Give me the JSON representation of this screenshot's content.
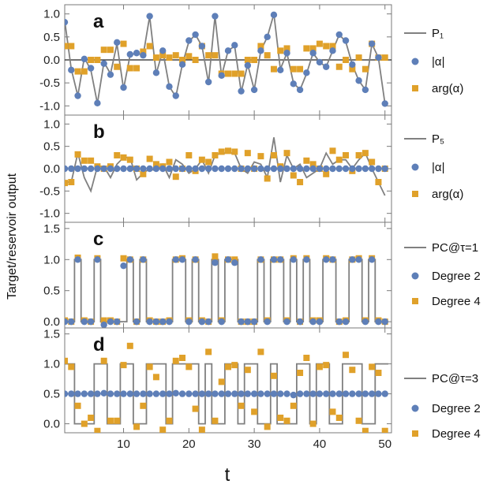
{
  "colors": {
    "target": "#808080",
    "degree2": "#5e7fb8",
    "degree4": "#e0a12a"
  },
  "figure": {
    "xlabel": "t",
    "ylabel": "Target/reservoir output"
  },
  "chart_data": [
    {
      "panel": "a",
      "type": "line+scatter",
      "xlim": [
        1,
        51
      ],
      "ylim": [
        -1.2,
        1.2
      ],
      "yticks": [
        "1.0",
        "0.5",
        "0.0",
        "-0.5",
        "-1.0"
      ],
      "ytick_values": [
        1.0,
        0.5,
        0.0,
        -0.5,
        -1.0
      ],
      "xticks": [
        10,
        20,
        30,
        40,
        50
      ],
      "zero_line": true,
      "legend": [
        "P₁",
        "|α|",
        "arg(α)"
      ],
      "x": [
        1,
        2,
        3,
        4,
        5,
        6,
        7,
        8,
        9,
        10,
        11,
        12,
        13,
        14,
        15,
        16,
        17,
        18,
        19,
        20,
        21,
        22,
        23,
        24,
        25,
        26,
        27,
        28,
        29,
        30,
        31,
        32,
        33,
        34,
        35,
        36,
        37,
        38,
        39,
        40,
        41,
        42,
        43,
        44,
        45,
        46,
        47,
        48,
        49,
        50
      ],
      "target": [
        0.85,
        -0.2,
        -0.78,
        0.05,
        -0.22,
        -0.95,
        -0.05,
        -0.3,
        0.35,
        -0.63,
        0.1,
        0.15,
        0.1,
        0.95,
        -0.3,
        0.2,
        -0.58,
        -0.8,
        -0.1,
        0.4,
        0.55,
        0.3,
        -0.5,
        0.95,
        -0.35,
        0.2,
        0.3,
        -0.7,
        -0.1,
        -0.65,
        0.2,
        0.5,
        1.0,
        -0.2,
        0.15,
        -0.5,
        -0.65,
        -0.3,
        0.15,
        -0.05,
        -0.15,
        0.2,
        0.55,
        0.4,
        -0.1,
        -0.45,
        -0.65,
        0.35,
        0.05,
        -0.95
      ],
      "series": [
        {
          "name": "|α|",
          "values": [
            0.82,
            -0.22,
            -0.78,
            0.02,
            -0.18,
            -0.94,
            -0.08,
            -0.32,
            0.38,
            -0.6,
            0.12,
            0.15,
            0.1,
            0.95,
            -0.28,
            0.2,
            -0.58,
            -0.78,
            -0.1,
            0.42,
            0.55,
            0.3,
            -0.48,
            0.95,
            -0.34,
            0.2,
            0.32,
            -0.68,
            -0.12,
            -0.65,
            0.2,
            0.5,
            0.98,
            -0.22,
            0.15,
            -0.52,
            -0.65,
            -0.28,
            0.15,
            -0.05,
            -0.15,
            0.2,
            0.55,
            0.42,
            -0.1,
            -0.45,
            -0.65,
            0.35,
            0.05,
            -0.95
          ]
        },
        {
          "name": "arg(α)",
          "values": [
            0.3,
            0.3,
            -0.25,
            -0.25,
            0.0,
            0.0,
            0.22,
            0.22,
            -0.15,
            0.35,
            -0.18,
            -0.18,
            0.18,
            0.3,
            0.05,
            0.1,
            0.05,
            0.1,
            0.0,
            0.08,
            0.0,
            0.3,
            0.1,
            0.1,
            -0.3,
            -0.3,
            -0.3,
            -0.3,
            0.0,
            0.0,
            0.3,
            0.1,
            -0.2,
            0.2,
            0.25,
            -0.2,
            -0.2,
            0.25,
            0.25,
            0.35,
            0.3,
            0.3,
            -0.15,
            0.0,
            -0.2,
            0.05,
            -0.2,
            0.35,
            0.05,
            0.05
          ]
        }
      ]
    },
    {
      "panel": "b",
      "type": "line+scatter",
      "xlim": [
        1,
        51
      ],
      "ylim": [
        -1.2,
        1.2
      ],
      "yticks": [
        "1.0",
        "0.5",
        "0.0",
        "-0.5",
        "-1.0"
      ],
      "ytick_values": [
        1.0,
        0.5,
        0.0,
        -0.5,
        -1.0
      ],
      "xticks": [
        10,
        20,
        30,
        40,
        50
      ],
      "legend": [
        "P₅",
        "|α|",
        "arg(α)"
      ],
      "x": [
        1,
        2,
        3,
        4,
        5,
        6,
        7,
        8,
        9,
        10,
        11,
        12,
        13,
        14,
        15,
        16,
        17,
        18,
        19,
        20,
        21,
        22,
        23,
        24,
        25,
        26,
        27,
        28,
        29,
        30,
        31,
        32,
        33,
        34,
        35,
        36,
        37,
        38,
        39,
        40,
        41,
        42,
        43,
        44,
        45,
        46,
        47,
        48,
        49,
        50
      ],
      "target": [
        -0.3,
        -0.3,
        0.35,
        -0.2,
        -0.5,
        0.05,
        0.05,
        -0.2,
        0.1,
        0.25,
        0.25,
        -0.25,
        -0.1,
        0.0,
        -0.05,
        0.1,
        -0.2,
        0.2,
        0.1,
        -0.1,
        0.0,
        0.2,
        -0.1,
        0.3,
        0.35,
        0.35,
        0.35,
        0.0,
        -0.1,
        0.15,
        0.1,
        -0.2,
        0.7,
        -0.3,
        0.3,
        0.0,
        0.1,
        -0.2,
        -0.1,
        0.0,
        0.35,
        0.1,
        0.2,
        0.2,
        0.0,
        0.2,
        0.35,
        0.0,
        -0.3,
        -0.6
      ],
      "series": [
        {
          "name": "|α|",
          "values": [
            0,
            0,
            0,
            0,
            0,
            0,
            0,
            0,
            0,
            0,
            0,
            0,
            0,
            0,
            0,
            0,
            0,
            0,
            0,
            0,
            0,
            0,
            0,
            0,
            0,
            0,
            0,
            0,
            0,
            0,
            0,
            0,
            0,
            0,
            0,
            0,
            0,
            0,
            0,
            0,
            0,
            0,
            0,
            0,
            0,
            0,
            0,
            0,
            0,
            0
          ]
        },
        {
          "name": "arg(α)",
          "values": [
            -0.32,
            -0.3,
            0.32,
            0.18,
            0.18,
            0.05,
            0.0,
            0.05,
            0.3,
            0.25,
            0.2,
            0.0,
            -0.12,
            0.22,
            0.1,
            0.05,
            0.15,
            -0.18,
            0.0,
            0.3,
            -0.05,
            0.2,
            0.15,
            0.3,
            0.38,
            0.4,
            0.38,
            0.0,
            0.35,
            0.0,
            0.28,
            -0.22,
            0.3,
            0.05,
            0.35,
            -0.15,
            -0.3,
            0.18,
            0.1,
            0.0,
            -0.12,
            0.4,
            0.2,
            0.3,
            -0.05,
            0.3,
            0.35,
            0.15,
            -0.3,
            0.0
          ]
        }
      ]
    },
    {
      "panel": "c",
      "type": "step+scatter",
      "xlim": [
        1,
        51
      ],
      "ylim": [
        -0.1,
        1.6
      ],
      "yticks": [
        "1.5",
        "1.0",
        "0.5",
        "0.0"
      ],
      "ytick_values": [
        1.5,
        1.0,
        0.5,
        0.0
      ],
      "xticks": [
        10,
        20,
        30,
        40,
        50
      ],
      "legend": [
        "PC@τ=1",
        "Degree 2",
        "Degree 4"
      ],
      "x": [
        1,
        2,
        3,
        4,
        5,
        6,
        7,
        8,
        9,
        10,
        11,
        12,
        13,
        14,
        15,
        16,
        17,
        18,
        19,
        20,
        21,
        22,
        23,
        24,
        25,
        26,
        27,
        28,
        29,
        30,
        31,
        32,
        33,
        34,
        35,
        36,
        37,
        38,
        39,
        40,
        41,
        42,
        43,
        44,
        45,
        46,
        47,
        48,
        49,
        50
      ],
      "target": [
        0,
        0,
        1,
        0,
        0,
        1,
        0,
        0,
        0,
        0,
        1,
        0,
        1,
        0,
        0,
        0,
        0,
        1,
        1,
        0,
        1,
        0,
        0,
        1,
        0,
        1,
        1,
        0,
        0,
        0,
        1,
        0,
        1,
        1,
        0,
        1,
        0,
        1,
        0,
        0,
        1,
        1,
        0,
        0,
        1,
        1,
        0,
        1,
        0,
        0
      ],
      "series": [
        {
          "name": "Degree 2",
          "values": [
            0.0,
            0.0,
            1.0,
            0.0,
            0.0,
            1.0,
            -0.05,
            0.0,
            0.0,
            0.9,
            1.0,
            0.0,
            1.0,
            0.0,
            0.0,
            0.0,
            0.0,
            1.0,
            1.0,
            0.0,
            1.0,
            0.0,
            0.0,
            0.95,
            0.0,
            1.0,
            0.95,
            0.0,
            0.0,
            0.0,
            1.0,
            0.0,
            1.0,
            1.0,
            0.0,
            1.0,
            0.0,
            1.0,
            0.0,
            0.0,
            1.0,
            1.0,
            0.0,
            0.0,
            1.0,
            1.0,
            0.0,
            1.0,
            0.0,
            0.0
          ]
        },
        {
          "name": "Degree 4",
          "values": [
            0.02,
            0.0,
            1.03,
            0.02,
            0.0,
            1.02,
            0.02,
            0.02,
            0.0,
            1.02,
            1.0,
            0.0,
            1.0,
            0.02,
            0.0,
            0.0,
            0.02,
            1.0,
            1.02,
            0.02,
            1.0,
            0.02,
            0.0,
            1.05,
            0.02,
            1.0,
            1.0,
            0.0,
            0.0,
            0.0,
            1.0,
            0.02,
            1.0,
            1.0,
            0.02,
            1.02,
            0.0,
            1.02,
            0.02,
            0.02,
            1.02,
            1.0,
            0.0,
            0.02,
            1.0,
            1.02,
            0.02,
            1.02,
            0.02,
            0.0
          ]
        }
      ]
    },
    {
      "panel": "d",
      "type": "step+scatter",
      "xlim": [
        1,
        51
      ],
      "ylim": [
        -0.15,
        1.6
      ],
      "yticks": [
        "1.5",
        "1.0",
        "0.5",
        "0.0"
      ],
      "ytick_values": [
        1.5,
        1.0,
        0.5,
        0.0
      ],
      "xticks": [
        10,
        20,
        30,
        40,
        50
      ],
      "legend": [
        "PC@τ=3",
        "Degree 2",
        "Degree 4"
      ],
      "x": [
        1,
        2,
        3,
        4,
        5,
        6,
        7,
        8,
        9,
        10,
        11,
        12,
        13,
        14,
        15,
        16,
        17,
        18,
        19,
        20,
        21,
        22,
        23,
        24,
        25,
        26,
        27,
        28,
        29,
        30,
        31,
        32,
        33,
        34,
        35,
        36,
        37,
        38,
        39,
        40,
        41,
        42,
        43,
        44,
        45,
        46,
        47,
        48,
        49,
        50
      ],
      "target": [
        1,
        1,
        0,
        0,
        0,
        1,
        1,
        0,
        0,
        1,
        1,
        0,
        0,
        1,
        1,
        1,
        0,
        1,
        1,
        1,
        1,
        0,
        1,
        0,
        0,
        1,
        1,
        0,
        1,
        1,
        0,
        0,
        1,
        0,
        0,
        0,
        1,
        1,
        0,
        1,
        1,
        0,
        0,
        1,
        1,
        1,
        0,
        0,
        1,
        1
      ],
      "series": [
        {
          "name": "Degree 2",
          "values": [
            0.5,
            0.5,
            0.5,
            0.5,
            0.5,
            0.5,
            0.51,
            0.5,
            0.5,
            0.5,
            0.5,
            0.5,
            0.5,
            0.5,
            0.5,
            0.5,
            0.5,
            0.51,
            0.5,
            0.5,
            0.5,
            0.5,
            0.5,
            0.5,
            0.5,
            0.5,
            0.5,
            0.5,
            0.5,
            0.5,
            0.5,
            0.5,
            0.5,
            0.5,
            0.5,
            0.48,
            0.5,
            0.5,
            0.5,
            0.5,
            0.5,
            0.5,
            0.5,
            0.5,
            0.5,
            0.5,
            0.5,
            0.5,
            0.5,
            0.5
          ]
        },
        {
          "name": "Degree 4",
          "values": [
            1.05,
            0.95,
            0.3,
            0.0,
            0.1,
            -0.12,
            1.05,
            0.05,
            0.05,
            0.98,
            1.3,
            -0.05,
            0.3,
            0.95,
            0.78,
            -0.1,
            0.05,
            1.05,
            1.1,
            0.95,
            0.25,
            -0.1,
            1.2,
            0.05,
            0.7,
            0.95,
            0.98,
            0.3,
            0.9,
            0.2,
            1.2,
            -0.05,
            0.8,
            0.1,
            0.05,
            0.3,
            0.85,
            1.1,
            0.0,
            0.95,
            0.98,
            0.2,
            0.1,
            1.15,
            0.9,
            0.05,
            -0.12,
            0.95,
            0.85,
            -0.12
          ]
        }
      ]
    }
  ]
}
